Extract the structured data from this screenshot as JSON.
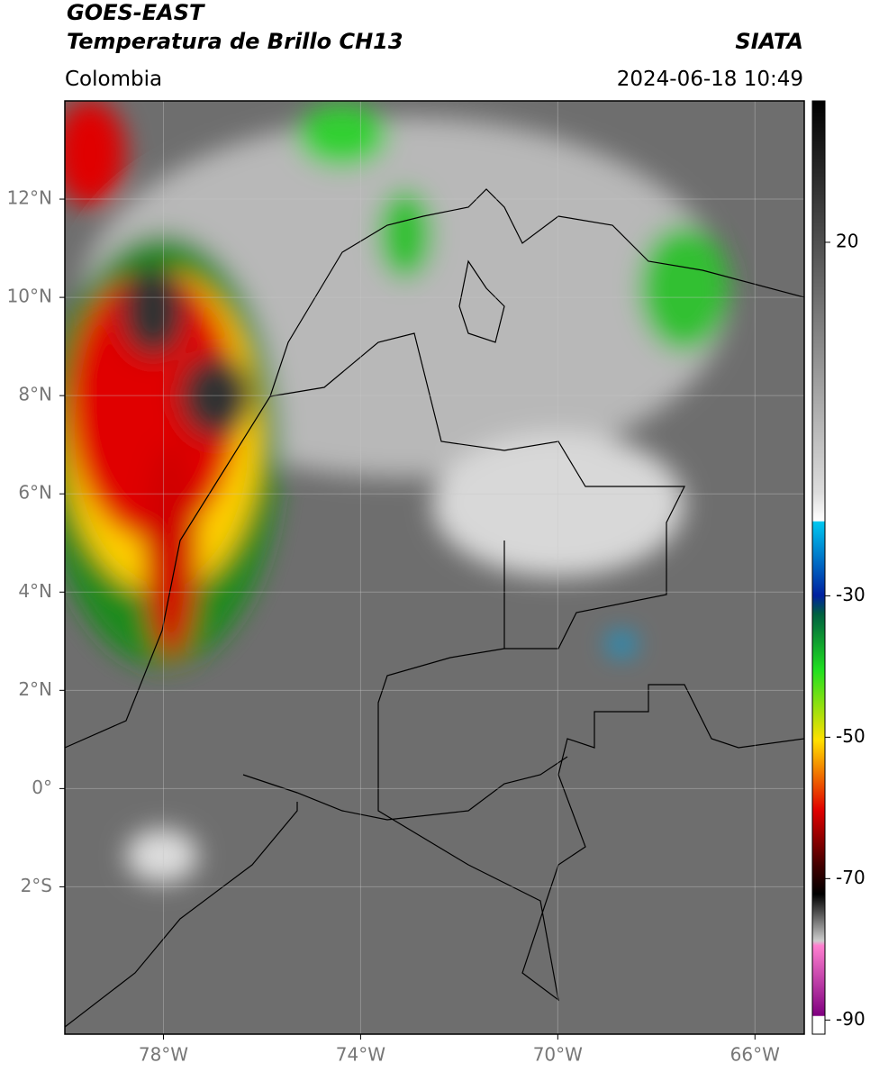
{
  "header": {
    "satellite": "GOES-EAST",
    "product": "Temperatura de Brillo CH13",
    "region": "Colombia",
    "agency": "SIATA",
    "datetime": "2024-06-18 10:49"
  },
  "map": {
    "xlim": [
      -80,
      -65
    ],
    "ylim": [
      -5,
      14
    ],
    "xticks": [
      {
        "value": -78,
        "label": "78°W"
      },
      {
        "value": -74,
        "label": "74°W"
      },
      {
        "value": -70,
        "label": "70°W"
      },
      {
        "value": -66,
        "label": "66°W"
      }
    ],
    "yticks": [
      {
        "value": 12,
        "label": "12°N"
      },
      {
        "value": 10,
        "label": "10°N"
      },
      {
        "value": 8,
        "label": "8°N"
      },
      {
        "value": 6,
        "label": "6°N"
      },
      {
        "value": 4,
        "label": "4°N"
      },
      {
        "value": 2,
        "label": "2°N"
      },
      {
        "value": 0,
        "label": "0°"
      },
      {
        "value": -2,
        "label": "2°S"
      }
    ],
    "grid": true
  },
  "colorbar": {
    "lim": [
      -92,
      40
    ],
    "ticks": [
      20,
      -30,
      -50,
      -70,
      -90
    ]
  }
}
